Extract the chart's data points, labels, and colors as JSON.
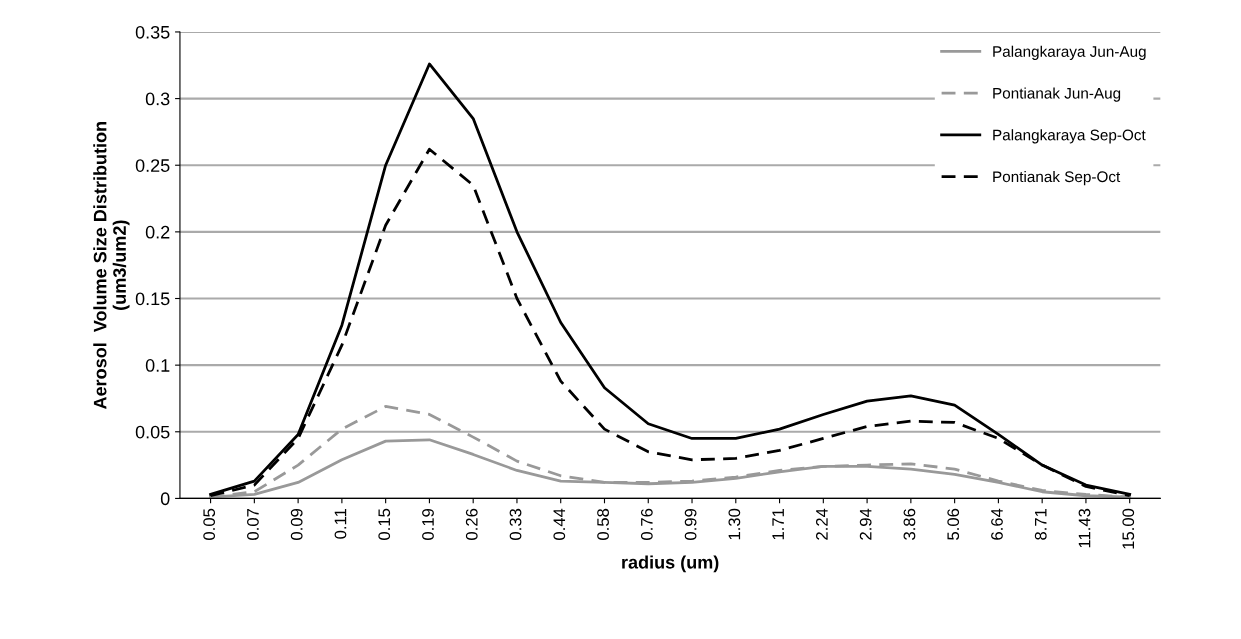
{
  "chart_data": {
    "type": "line",
    "xlabel": "radius (um)",
    "ylabel": "Aerosol  Volume Size Distribution\n(um3/um2)",
    "categories": [
      "0.05",
      "0.07",
      "0.09",
      "0.11",
      "0.15",
      "0.19",
      "0.26",
      "0.33",
      "0.44",
      "0.58",
      "0.76",
      "0.99",
      "1.30",
      "1.71",
      "2.24",
      "2.94",
      "3.86",
      "5.06",
      "6.64",
      "8.71",
      "11.43",
      "15.00"
    ],
    "series": [
      {
        "name": "Palangkaraya Jun-Aug",
        "color": "#999999",
        "line_style": "solid",
        "values": [
          0.001,
          0.003,
          0.012,
          0.029,
          0.043,
          0.044,
          0.033,
          0.021,
          0.013,
          0.012,
          0.011,
          0.012,
          0.015,
          0.02,
          0.024,
          0.024,
          0.022,
          0.018,
          0.012,
          0.005,
          0.002,
          0.001
        ]
      },
      {
        "name": "Pontianak Jun-Aug",
        "color": "#999999",
        "line_style": "dashed",
        "values": [
          0.001,
          0.005,
          0.025,
          0.052,
          0.069,
          0.063,
          0.046,
          0.028,
          0.017,
          0.012,
          0.012,
          0.013,
          0.016,
          0.021,
          0.024,
          0.025,
          0.026,
          0.022,
          0.013,
          0.006,
          0.003,
          0.001
        ]
      },
      {
        "name": "Palangkaraya Sep-Oct",
        "color": "#000000",
        "line_style": "solid",
        "values": [
          0.003,
          0.013,
          0.048,
          0.13,
          0.25,
          0.326,
          0.285,
          0.2,
          0.132,
          0.083,
          0.056,
          0.045,
          0.045,
          0.052,
          0.063,
          0.073,
          0.077,
          0.07,
          0.048,
          0.025,
          0.01,
          0.003
        ]
      },
      {
        "name": "Pontianak Sep-Oct",
        "color": "#000000",
        "line_style": "dashed",
        "values": [
          0.002,
          0.01,
          0.045,
          0.115,
          0.205,
          0.262,
          0.235,
          0.15,
          0.088,
          0.052,
          0.035,
          0.029,
          0.03,
          0.036,
          0.045,
          0.054,
          0.058,
          0.057,
          0.045,
          0.025,
          0.009,
          0.002
        ]
      }
    ],
    "ylim": [
      0,
      0.35
    ],
    "yticks": [
      0,
      0.05,
      0.1,
      0.15,
      0.2,
      0.25,
      0.3,
      0.35
    ],
    "grid": "y",
    "legend": "top right",
    "marker": "none"
  }
}
